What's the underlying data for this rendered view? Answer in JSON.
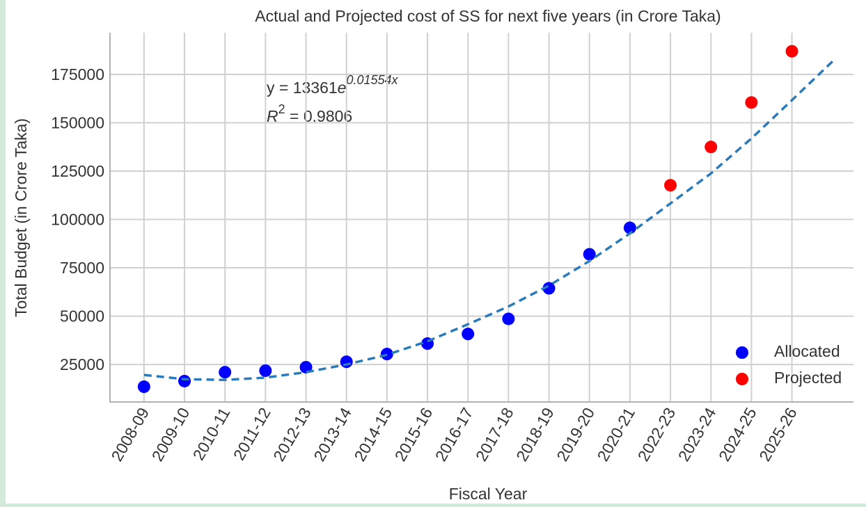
{
  "chart_data": {
    "type": "scatter",
    "title": "Actual and Projected cost of SS for next five years (in Crore Taka)",
    "x_label": "Fiscal Year",
    "y_label": "Total Budget (in Crore Taka)",
    "categories": [
      "2008-09",
      "2009-10",
      "2010-11",
      "2011-12",
      "2012-13",
      "2013-14",
      "2014-15",
      "2015-16",
      "2016-17",
      "2017-18",
      "2018-19",
      "2019-20",
      "2020-21",
      "2022-23",
      "2023-24",
      "2024-25",
      "2025-26"
    ],
    "series": [
      {
        "name": "Allocated",
        "color": "#0000ff",
        "values": [
          13500,
          16400,
          21000,
          21800,
          23600,
          26400,
          30400,
          35800,
          40800,
          48600,
          64400,
          82000,
          95700,
          null,
          null,
          null,
          null
        ]
      },
      {
        "name": "Projected",
        "color": "#ff0000",
        "values": [
          null,
          null,
          null,
          null,
          null,
          null,
          null,
          null,
          null,
          null,
          null,
          null,
          null,
          117700,
          137500,
          160500,
          187000
        ]
      },
      {
        "type": "line",
        "color": "#2b7bba",
        "dashed": true,
        "x": [
          0,
          1,
          2,
          3,
          4,
          5,
          6,
          7,
          8,
          9,
          10,
          11,
          12,
          13,
          14,
          15,
          16,
          17
        ],
        "values": [
          19600,
          17400,
          17000,
          18200,
          21000,
          25000,
          30000,
          37000,
          45800,
          55000,
          65800,
          78500,
          92800,
          108300,
          123800,
          141900,
          161700,
          181700
        ]
      }
    ],
    "equation": {
      "base": "y = 13361",
      "e": "e",
      "exponent": "0.01554x"
    },
    "r2": {
      "base": "R",
      "sup": "2",
      "rest": " = 0.9806"
    },
    "xlim": [
      -0.84,
      17.52
    ],
    "ylim": [
      5600,
      196600
    ],
    "yticks": [
      25000,
      50000,
      75000,
      100000,
      125000,
      150000,
      175000
    ],
    "grid": true,
    "legend": "lower right"
  }
}
